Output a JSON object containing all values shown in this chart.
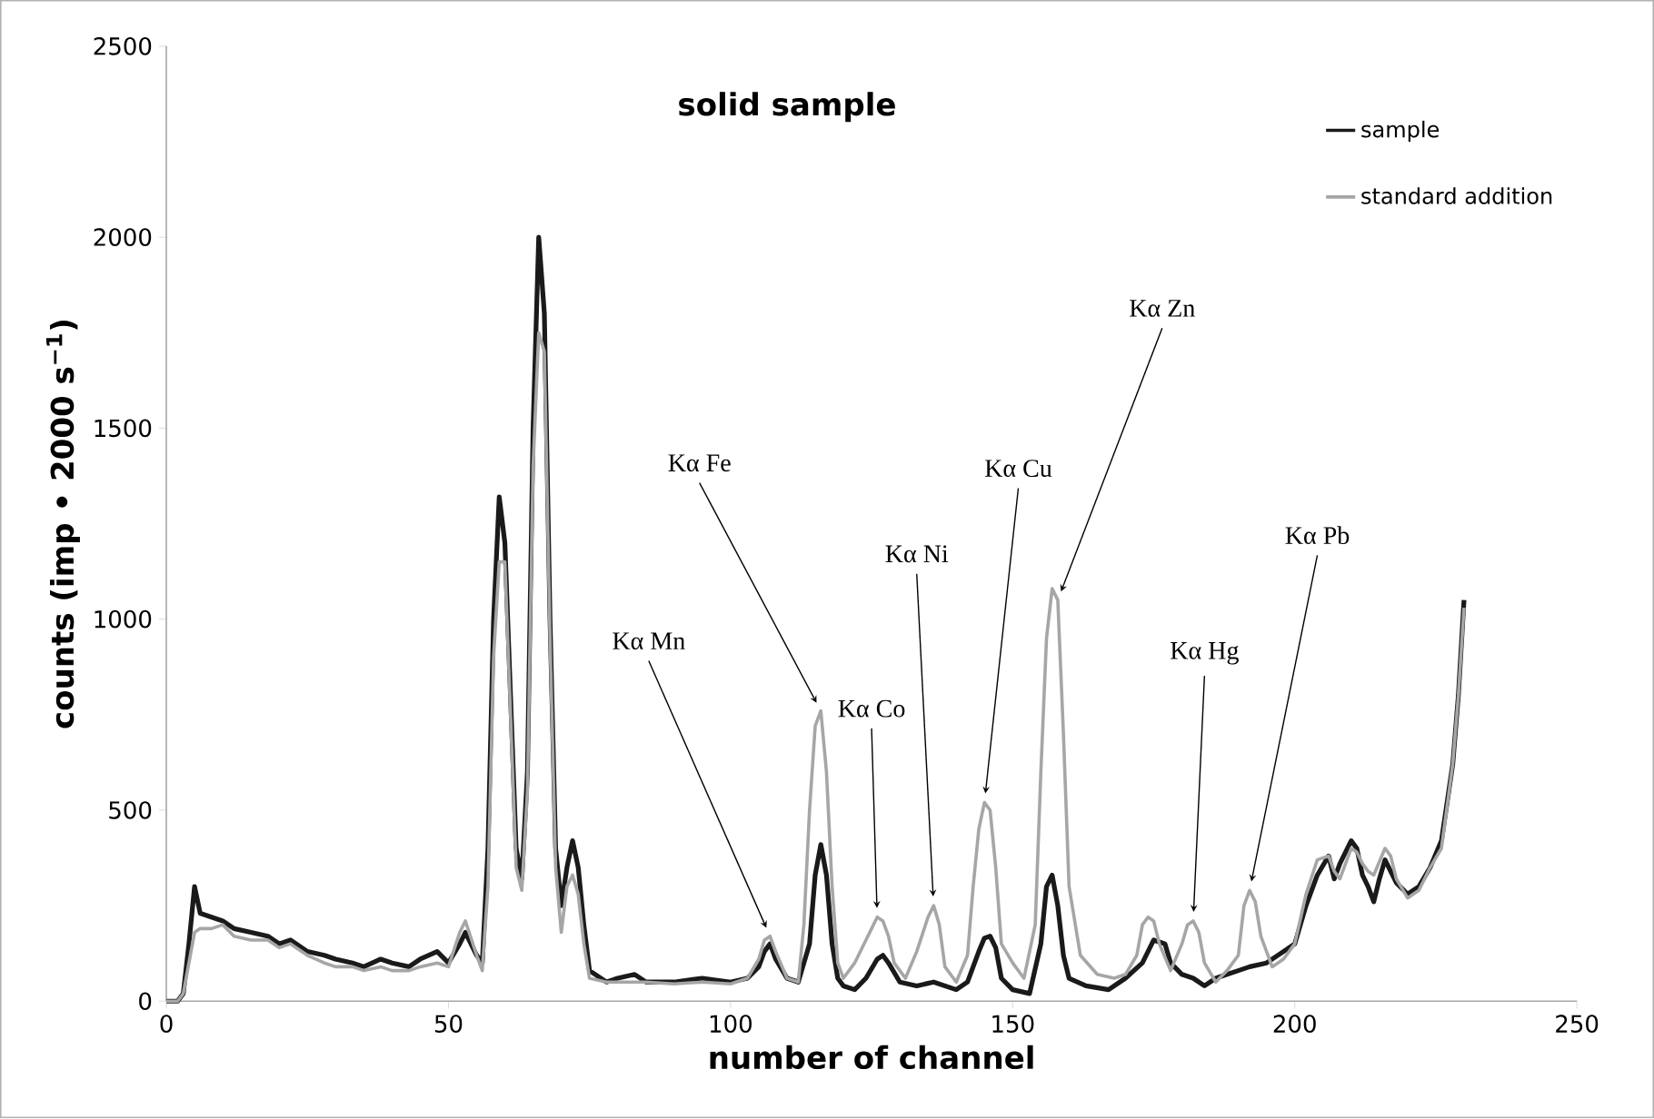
{
  "chart_data": {
    "type": "line",
    "title": "solid sample",
    "xlabel": "number of channel",
    "ylabel": "counts (imp • 2000 s$^{−1}$)",
    "xlim": [
      0,
      250
    ],
    "xticks": [
      0,
      50,
      100,
      150,
      200,
      250
    ],
    "ylim": [
      0,
      2500
    ],
    "yticks": [
      0,
      500,
      1000,
      1500,
      2000,
      2500
    ],
    "legend": "top right",
    "series": [
      {
        "name": "sample",
        "color": "#1a1a1a",
        "x": [
          0,
          2,
          3,
          4,
          5,
          6,
          8,
          10,
          12,
          15,
          18,
          20,
          22,
          25,
          28,
          30,
          33,
          35,
          38,
          40,
          43,
          45,
          48,
          50,
          52,
          53,
          55,
          56,
          57,
          58,
          59,
          60,
          61,
          62,
          63,
          64,
          65,
          66,
          67,
          68,
          69,
          70,
          71,
          72,
          73,
          74,
          75,
          78,
          80,
          83,
          85,
          90,
          95,
          100,
          103,
          105,
          106,
          107,
          108,
          110,
          112,
          114,
          115,
          116,
          117,
          118,
          119,
          120,
          122,
          124,
          126,
          127,
          128,
          130,
          133,
          136,
          138,
          140,
          142,
          144,
          145,
          146,
          147,
          148,
          150,
          153,
          155,
          156,
          157,
          158,
          159,
          160,
          163,
          167,
          170,
          173,
          175,
          177,
          178,
          180,
          182,
          184,
          186,
          188,
          190,
          192,
          195,
          198,
          200,
          202,
          204,
          206,
          207,
          208,
          210,
          211,
          212,
          213,
          214,
          215,
          216,
          218,
          220,
          222,
          224,
          226,
          228,
          229,
          230
        ],
        "values": [
          0,
          0,
          20,
          150,
          300,
          230,
          220,
          210,
          190,
          180,
          170,
          150,
          160,
          130,
          120,
          110,
          100,
          90,
          110,
          100,
          90,
          110,
          130,
          100,
          150,
          180,
          120,
          100,
          400,
          1000,
          1320,
          1200,
          800,
          400,
          320,
          600,
          1500,
          2000,
          1800,
          1000,
          400,
          250,
          350,
          420,
          350,
          200,
          80,
          50,
          60,
          70,
          50,
          50,
          60,
          50,
          60,
          90,
          130,
          150,
          110,
          60,
          50,
          150,
          330,
          410,
          330,
          150,
          60,
          40,
          30,
          60,
          110,
          120,
          100,
          50,
          40,
          50,
          40,
          30,
          50,
          130,
          165,
          170,
          140,
          60,
          30,
          20,
          150,
          300,
          330,
          250,
          120,
          60,
          40,
          30,
          60,
          100,
          160,
          150,
          100,
          70,
          60,
          40,
          60,
          70,
          80,
          90,
          100,
          130,
          150,
          250,
          330,
          380,
          320,
          360,
          420,
          400,
          330,
          300,
          260,
          320,
          370,
          310,
          280,
          300,
          350,
          420,
          620,
          800,
          1050
        ]
      },
      {
        "name": "standard addition",
        "color": "#a6a6a6",
        "x": [
          0,
          2,
          3,
          4,
          5,
          6,
          8,
          10,
          12,
          15,
          18,
          20,
          22,
          25,
          28,
          30,
          33,
          35,
          38,
          40,
          43,
          45,
          48,
          50,
          52,
          53,
          55,
          56,
          57,
          58,
          59,
          60,
          61,
          62,
          63,
          64,
          65,
          66,
          67,
          68,
          69,
          70,
          71,
          72,
          73,
          74,
          75,
          78,
          80,
          85,
          90,
          95,
          100,
          103,
          105,
          106,
          107,
          108,
          110,
          112,
          113,
          114,
          115,
          116,
          117,
          118,
          119,
          120,
          122,
          124,
          126,
          127,
          128,
          129,
          131,
          133,
          135,
          136,
          137,
          138,
          140,
          142,
          143,
          144,
          145,
          146,
          147,
          148,
          150,
          152,
          154,
          155,
          156,
          157,
          158,
          159,
          160,
          162,
          165,
          168,
          170,
          172,
          173,
          174,
          175,
          176,
          178,
          180,
          181,
          182,
          183,
          184,
          186,
          188,
          190,
          191,
          192,
          193,
          194,
          196,
          198,
          200,
          202,
          204,
          206,
          207,
          208,
          210,
          211,
          212,
          213,
          214,
          216,
          217,
          218,
          220,
          222,
          224,
          226,
          228,
          229,
          230
        ],
        "values": [
          0,
          0,
          20,
          100,
          180,
          190,
          190,
          200,
          170,
          160,
          160,
          140,
          150,
          120,
          100,
          90,
          90,
          80,
          90,
          80,
          80,
          90,
          100,
          90,
          180,
          210,
          120,
          80,
          300,
          900,
          1150,
          1150,
          750,
          350,
          290,
          550,
          1400,
          1750,
          1700,
          950,
          350,
          180,
          300,
          330,
          280,
          150,
          60,
          50,
          50,
          50,
          45,
          50,
          45,
          60,
          110,
          160,
          170,
          130,
          60,
          50,
          200,
          500,
          720,
          760,
          600,
          300,
          100,
          60,
          100,
          160,
          220,
          210,
          170,
          100,
          60,
          130,
          220,
          250,
          200,
          90,
          50,
          120,
          300,
          450,
          520,
          500,
          350,
          150,
          100,
          60,
          200,
          600,
          950,
          1080,
          1050,
          700,
          300,
          120,
          70,
          60,
          70,
          120,
          200,
          220,
          210,
          150,
          80,
          150,
          200,
          210,
          180,
          100,
          50,
          80,
          120,
          250,
          290,
          260,
          170,
          90,
          110,
          150,
          280,
          370,
          380,
          340,
          320,
          400,
          390,
          360,
          340,
          330,
          400,
          380,
          320,
          270,
          290,
          350,
          400,
          620,
          800,
          1030
        ]
      }
    ],
    "annotations": [
      {
        "text": "Kα Mn",
        "x": 107,
        "y": 170
      },
      {
        "text": "Kα Fe",
        "x": 116,
        "y": 760
      },
      {
        "text": "Kα Co",
        "x": 126,
        "y": 220
      },
      {
        "text": "Kα Ni",
        "x": 136,
        "y": 250
      },
      {
        "text": "Kα Cu",
        "x": 145,
        "y": 520
      },
      {
        "text": "Kα Zn",
        "x": 158,
        "y": 1050
      },
      {
        "text": "Kα Hg",
        "x": 182,
        "y": 210
      },
      {
        "text": "Kα Pb",
        "x": 192,
        "y": 290
      }
    ]
  }
}
